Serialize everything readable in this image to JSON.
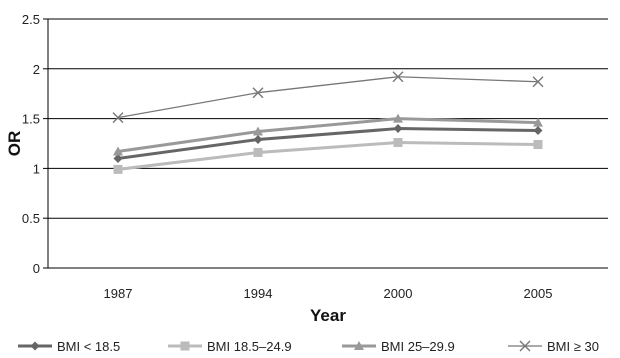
{
  "chart_data": {
    "type": "line",
    "title": "",
    "xlabel": "Year",
    "ylabel": "OR",
    "categories": [
      "1987",
      "1994",
      "2000",
      "2005"
    ],
    "ylim": [
      0,
      2.5
    ],
    "yticks": [
      "0",
      "0.5",
      "1",
      "1.5",
      "2",
      "2.5"
    ],
    "grid": "horizontal",
    "legend_position": "bottom",
    "series": [
      {
        "name": "BMI < 18.5",
        "values": [
          1.1,
          1.29,
          1.4,
          1.38
        ],
        "color": "#666666",
        "marker": "diamond"
      },
      {
        "name": "BMI 18.5–24.9",
        "values": [
          0.99,
          1.16,
          1.26,
          1.24
        ],
        "color": "#bbbbbb",
        "marker": "square"
      },
      {
        "name": "BMI 25–29.9",
        "values": [
          1.17,
          1.37,
          1.5,
          1.46
        ],
        "color": "#999999",
        "marker": "triangle"
      },
      {
        "name": "BMI ≥ 30",
        "values": [
          1.51,
          1.76,
          1.92,
          1.87
        ],
        "color": "#777777",
        "marker": "x"
      }
    ]
  }
}
